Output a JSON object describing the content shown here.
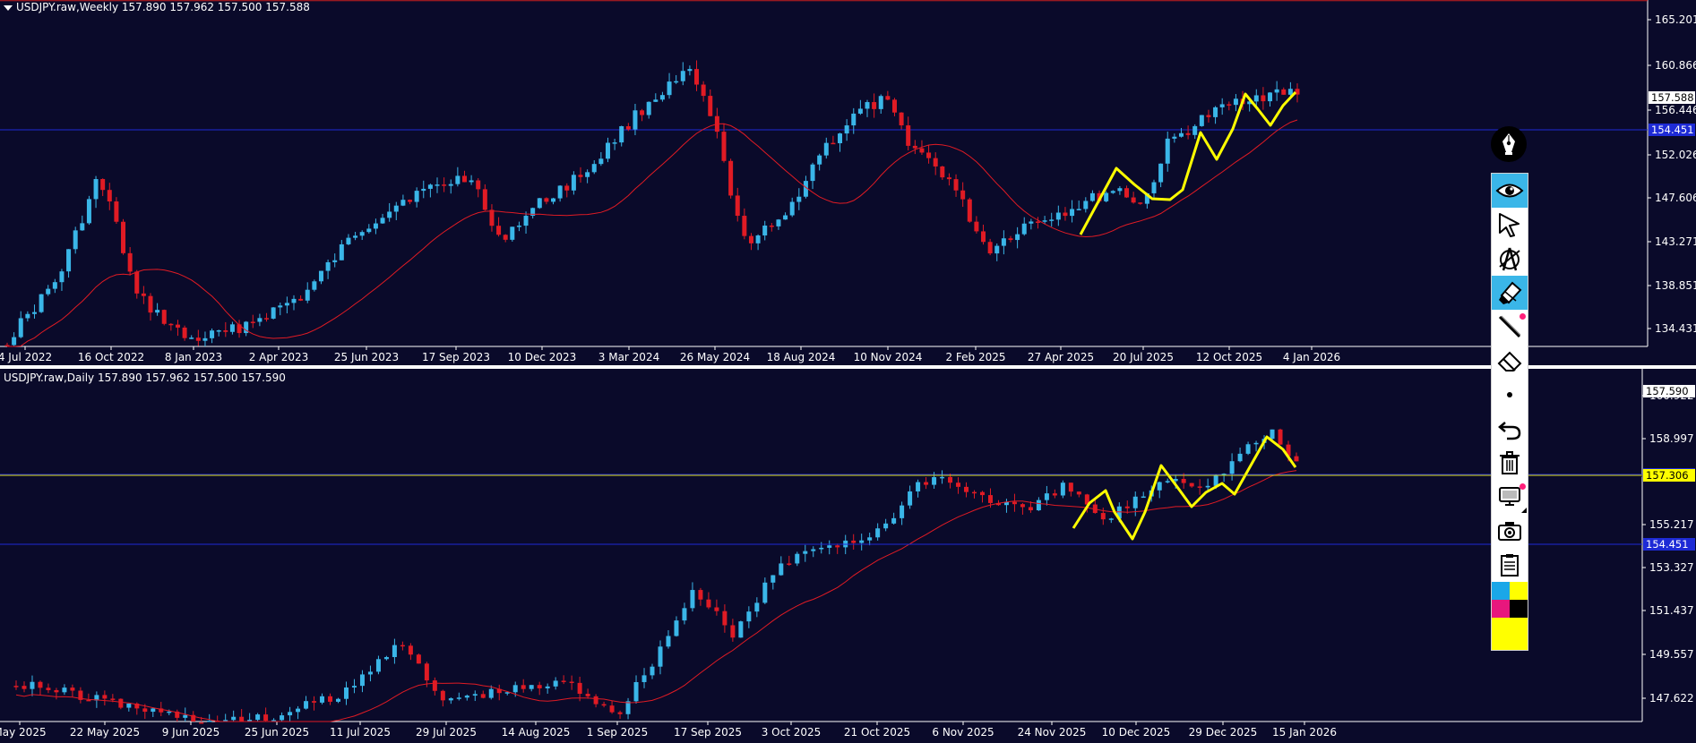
{
  "weekly": {
    "header": "USDJPY.raw,Weekly  157.890 157.962 157.500 157.588",
    "price_ticks": [
      "165.201",
      "160.866",
      "156.446",
      "152.026",
      "147.606",
      "143.271",
      "138.851",
      "134.431"
    ],
    "date_ticks": [
      "4 Jul 2022",
      "16 Oct 2022",
      "8 Jan 2023",
      "2 Apr 2023",
      "25 Jun 2023",
      "17 Sep 2023",
      "10 Dec 2023",
      "3 Mar 2024",
      "26 May 2024",
      "18 Aug 2024",
      "10 Nov 2024",
      "2 Feb 2025",
      "27 Apr 2025",
      "20 Jul 2025",
      "12 Oct 2025",
      "4 Jan 2026"
    ],
    "current_price": "157.588",
    "line_price_label": "154.451"
  },
  "daily": {
    "header": "USDJPY.raw,Daily  157.890 157.962 157.500 157.590",
    "price_ticks": [
      "160.922",
      "158.997",
      "155.217",
      "153.327",
      "151.437",
      "149.557",
      "147.622"
    ],
    "date_ticks": [
      "May 2025",
      "22 May 2025",
      "9 Jun 2025",
      "25 Jun 2025",
      "11 Jul 2025",
      "29 Jul 2025",
      "14 Aug 2025",
      "1 Sep 2025",
      "17 Sep 2025",
      "3 Oct 2025",
      "21 Oct 2025",
      "6 Nov 2025",
      "24 Nov 2025",
      "10 Dec 2025",
      "29 Dec 2025",
      "15 Jan 2026"
    ],
    "current_price": "157.590",
    "yellow_line_label": "157.306",
    "blue_line_label": "154.451"
  },
  "colors": {
    "background": "#0a0a2a",
    "bull": "#3ab6e8",
    "bear": "#e01b24",
    "ma": "#e01b24",
    "annotation": "#ffff00",
    "level_line_blue": "#1e2bd6",
    "level_line_yellow": "#d9d900"
  },
  "toolbar": {
    "tools": [
      "eye-icon",
      "cursor-icon",
      "compass-icon",
      "marker-icon",
      "line-tool-icon",
      "eraser-icon",
      "dot-size-icon",
      "undo-icon",
      "trash-icon",
      "monitor-icon",
      "camera-icon",
      "clipboard-icon"
    ],
    "swatches": [
      "#1aa7e8",
      "#ffff00",
      "#e8177d",
      "#000000",
      "#ffff00"
    ]
  }
}
